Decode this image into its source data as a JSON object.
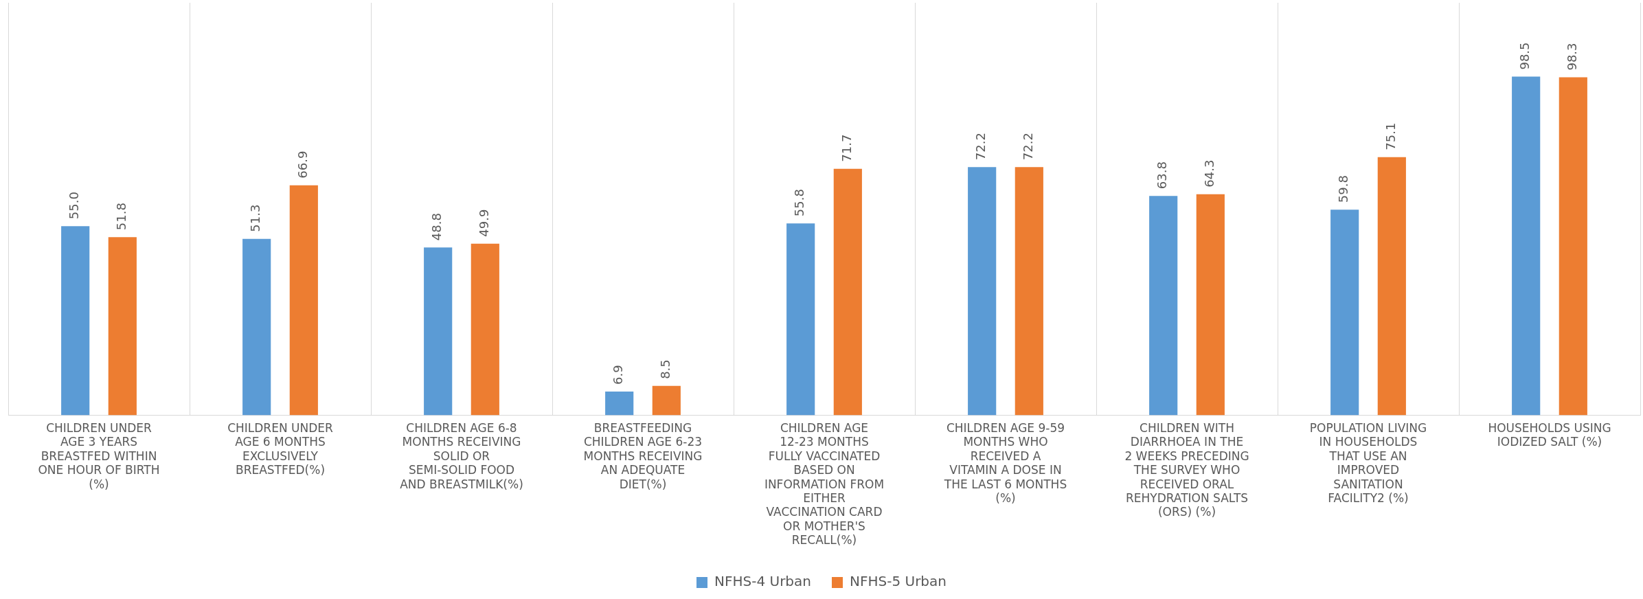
{
  "chart_data": {
    "type": "bar",
    "categories": [
      "CHILDREN UNDER AGE 3 YEARS BREASTFED WITHIN ONE HOUR OF BIRTH (%)",
      "CHILDREN UNDER AGE 6 MONTHS EXCLUSIVELY BREASTFED(%)",
      "CHILDREN AGE 6-8 MONTHS RECEIVING SOLID OR SEMI-SOLID FOOD AND BREASTMILK(%)",
      "BREASTFEEDING CHILDREN AGE 6-23 MONTHS RECEIVING AN ADEQUATE DIET(%)",
      "CHILDREN AGE 12-23 MONTHS FULLY VACCINATED BASED ON INFORMATION FROM EITHER VACCINATION CARD OR MOTHER'S RECALL(%)",
      "CHILDREN AGE 9-59 MONTHS WHO RECEIVED A VITAMIN A DOSE IN THE LAST 6 MONTHS (%)",
      "CHILDREN WITH DIARRHOEA IN THE 2 WEEKS PRECEDING THE SURVEY WHO RECEIVED ORAL REHYDRATION SALTS (ORS) (%)",
      "POPULATION LIVING IN HOUSEHOLDS THAT USE AN IMPROVED SANITATION FACILITY2 (%)",
      "HOUSEHOLDS USING IODIZED SALT (%)"
    ],
    "series": [
      {
        "name": "NFHS-4 Urban",
        "color": "#5b9bd5",
        "values": [
          55.0,
          51.3,
          48.8,
          6.9,
          55.8,
          72.2,
          63.8,
          59.8,
          98.5
        ],
        "value_labels": [
          "55.0",
          "51.3",
          "48.8",
          "6.9",
          "55.8",
          "72.2",
          "63.8",
          "59.8",
          "98.5"
        ]
      },
      {
        "name": "NFHS-5 Urban",
        "color": "#ed7d31",
        "values": [
          51.8,
          66.9,
          49.9,
          8.5,
          71.7,
          72.2,
          64.3,
          75.1,
          98.3
        ],
        "value_labels": [
          "51.8",
          "66.9",
          "49.9",
          "8.5",
          "71.7",
          "72.2",
          "64.3",
          "75.1",
          "98.3"
        ]
      }
    ],
    "grid": "x",
    "legend": "bottom"
  }
}
